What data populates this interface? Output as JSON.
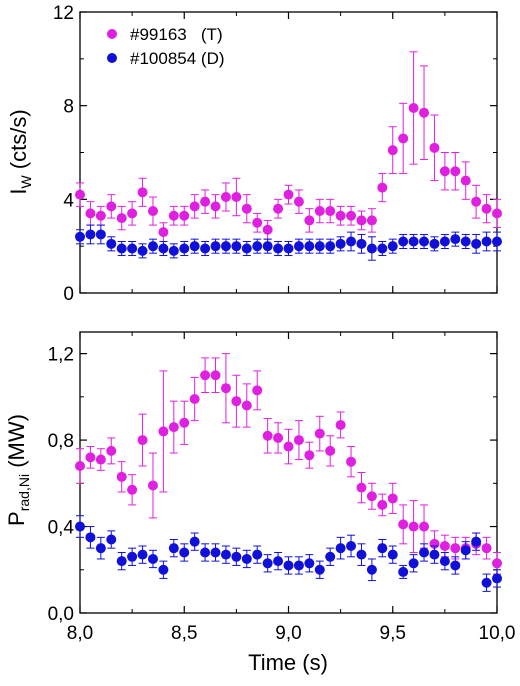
{
  "chart_data": [
    {
      "type": "scatter",
      "ylabel_main": "I",
      "ylabel_sub": "W",
      "ylabel_unit": " (cts/s)",
      "ylim": [
        0,
        12
      ],
      "yticks": [
        0,
        4,
        8,
        12
      ],
      "ytick_labels": [
        "0",
        "4",
        "8",
        "12"
      ],
      "xlim": [
        8.0,
        10.0
      ],
      "legend": [
        {
          "label": "#99163   (T)",
          "color": "#e020e0"
        },
        {
          "label": "#100854 (D)",
          "color": "#1010d8"
        }
      ],
      "series": [
        {
          "name": "#99163   (T)",
          "color": "#e020e0",
          "x": [
            8.0,
            8.05,
            8.1,
            8.15,
            8.2,
            8.25,
            8.3,
            8.35,
            8.4,
            8.45,
            8.5,
            8.55,
            8.6,
            8.65,
            8.7,
            8.75,
            8.8,
            8.85,
            8.9,
            8.95,
            9.0,
            9.05,
            9.1,
            9.15,
            9.2,
            9.25,
            9.3,
            9.35,
            9.4,
            9.45,
            9.5,
            9.55,
            9.6,
            9.65,
            9.7,
            9.75,
            9.8,
            9.85,
            9.9,
            9.95,
            10.0
          ],
          "y": [
            4.2,
            3.4,
            3.3,
            3.7,
            3.2,
            3.4,
            4.3,
            3.5,
            2.6,
            3.3,
            3.3,
            3.7,
            3.9,
            3.7,
            4.1,
            4.1,
            3.6,
            3.0,
            2.7,
            3.6,
            4.2,
            3.9,
            3.1,
            3.5,
            3.5,
            3.3,
            3.3,
            3.1,
            3.1,
            4.5,
            6.1,
            6.6,
            7.9,
            7.7,
            6.2,
            5.2,
            5.2,
            4.8,
            3.9,
            3.6,
            3.4
          ],
          "err": [
            0.5,
            0.5,
            0.4,
            0.5,
            0.5,
            0.5,
            0.6,
            0.6,
            0.4,
            0.4,
            0.4,
            0.5,
            0.5,
            0.5,
            0.6,
            0.8,
            0.6,
            0.4,
            0.4,
            0.4,
            0.4,
            0.5,
            0.5,
            0.5,
            0.5,
            0.4,
            0.4,
            0.4,
            0.5,
            0.6,
            1.0,
            1.5,
            2.4,
            2.0,
            1.4,
            0.8,
            0.8,
            0.8,
            0.7,
            0.6,
            0.6
          ]
        },
        {
          "name": "#100854 (D)",
          "color": "#1010d8",
          "x": [
            8.0,
            8.05,
            8.1,
            8.15,
            8.2,
            8.25,
            8.3,
            8.35,
            8.4,
            8.45,
            8.5,
            8.55,
            8.6,
            8.65,
            8.7,
            8.75,
            8.8,
            8.85,
            8.9,
            8.95,
            9.0,
            9.05,
            9.1,
            9.15,
            9.2,
            9.25,
            9.3,
            9.35,
            9.4,
            9.45,
            9.5,
            9.55,
            9.6,
            9.65,
            9.7,
            9.75,
            9.8,
            9.85,
            9.9,
            9.95,
            10.0
          ],
          "y": [
            2.4,
            2.5,
            2.5,
            2.1,
            1.9,
            1.9,
            1.8,
            2.0,
            1.9,
            1.8,
            1.9,
            2.0,
            1.9,
            2.0,
            2.0,
            2.0,
            1.9,
            2.0,
            2.0,
            1.9,
            1.9,
            2.0,
            2.0,
            2.0,
            2.0,
            2.1,
            2.2,
            2.1,
            1.9,
            1.9,
            2.0,
            2.2,
            2.2,
            2.2,
            2.1,
            2.2,
            2.3,
            2.2,
            2.1,
            2.2,
            2.2
          ],
          "err": [
            0.3,
            0.4,
            0.4,
            0.3,
            0.3,
            0.3,
            0.3,
            0.3,
            0.3,
            0.3,
            0.3,
            0.3,
            0.3,
            0.3,
            0.3,
            0.3,
            0.3,
            0.3,
            0.3,
            0.3,
            0.3,
            0.3,
            0.3,
            0.3,
            0.3,
            0.3,
            0.4,
            0.4,
            0.5,
            0.3,
            0.3,
            0.3,
            0.3,
            0.3,
            0.3,
            0.3,
            0.3,
            0.3,
            0.4,
            0.4,
            0.4
          ]
        }
      ]
    },
    {
      "type": "scatter",
      "xlabel": "Time (s)",
      "ylabel_main": "P",
      "ylabel_sub": "rad,Ni",
      "ylabel_unit": " (MW)",
      "ylim": [
        0,
        1.3
      ],
      "yticks": [
        0,
        0.4,
        0.8,
        1.2
      ],
      "ytick_labels": [
        "0,0",
        "0,4",
        "0,8",
        "1,2"
      ],
      "xlim": [
        8.0,
        10.0
      ],
      "xticks": [
        8.0,
        8.5,
        9.0,
        9.5,
        10.0
      ],
      "xtick_labels": [
        "8,0",
        "8,5",
        "9,0",
        "9,5",
        "10,0"
      ],
      "series": [
        {
          "name": "#99163   (T)",
          "color": "#e020e0",
          "x": [
            8.0,
            8.05,
            8.1,
            8.15,
            8.2,
            8.25,
            8.3,
            8.35,
            8.4,
            8.45,
            8.5,
            8.55,
            8.6,
            8.65,
            8.7,
            8.75,
            8.8,
            8.85,
            8.9,
            8.95,
            9.0,
            9.05,
            9.1,
            9.15,
            9.2,
            9.25,
            9.3,
            9.35,
            9.4,
            9.45,
            9.5,
            9.55,
            9.6,
            9.65,
            9.7,
            9.75,
            9.8,
            9.85,
            9.9,
            9.95,
            10.0
          ],
          "y": [
            0.68,
            0.72,
            0.71,
            0.75,
            0.63,
            0.57,
            0.8,
            0.59,
            0.84,
            0.86,
            0.88,
            0.99,
            1.1,
            1.1,
            1.04,
            0.98,
            0.96,
            1.03,
            0.82,
            0.81,
            0.77,
            0.8,
            0.73,
            0.83,
            0.75,
            0.87,
            0.7,
            0.58,
            0.54,
            0.5,
            0.53,
            0.41,
            0.4,
            0.4,
            0.32,
            0.31,
            0.3,
            0.3,
            0.32,
            0.3,
            0.23
          ],
          "err": [
            0.08,
            0.05,
            0.05,
            0.06,
            0.07,
            0.07,
            0.12,
            0.15,
            0.28,
            0.12,
            0.1,
            0.1,
            0.08,
            0.08,
            0.16,
            0.12,
            0.1,
            0.09,
            0.08,
            0.07,
            0.08,
            0.09,
            0.06,
            0.08,
            0.07,
            0.06,
            0.07,
            0.07,
            0.06,
            0.05,
            0.07,
            0.09,
            0.12,
            0.1,
            0.06,
            0.05,
            0.05,
            0.05,
            0.05,
            0.05,
            0.05
          ]
        },
        {
          "name": "#100854 (D)",
          "color": "#1010d8",
          "x": [
            8.0,
            8.05,
            8.1,
            8.15,
            8.2,
            8.25,
            8.3,
            8.35,
            8.4,
            8.45,
            8.5,
            8.55,
            8.6,
            8.65,
            8.7,
            8.75,
            8.8,
            8.85,
            8.9,
            8.95,
            9.0,
            9.05,
            9.1,
            9.15,
            9.2,
            9.25,
            9.3,
            9.35,
            9.4,
            9.45,
            9.5,
            9.55,
            9.6,
            9.65,
            9.7,
            9.75,
            9.8,
            9.85,
            9.9,
            9.95,
            10.0
          ],
          "y": [
            0.4,
            0.35,
            0.3,
            0.34,
            0.24,
            0.26,
            0.27,
            0.25,
            0.2,
            0.3,
            0.28,
            0.33,
            0.28,
            0.28,
            0.27,
            0.26,
            0.25,
            0.27,
            0.23,
            0.24,
            0.22,
            0.22,
            0.23,
            0.2,
            0.26,
            0.3,
            0.31,
            0.27,
            0.2,
            0.3,
            0.27,
            0.19,
            0.23,
            0.28,
            0.27,
            0.24,
            0.22,
            0.29,
            0.33,
            0.14,
            0.16
          ],
          "err": [
            0.05,
            0.05,
            0.05,
            0.04,
            0.04,
            0.04,
            0.04,
            0.04,
            0.04,
            0.04,
            0.04,
            0.04,
            0.04,
            0.04,
            0.04,
            0.04,
            0.04,
            0.04,
            0.04,
            0.04,
            0.04,
            0.04,
            0.04,
            0.04,
            0.04,
            0.05,
            0.05,
            0.05,
            0.05,
            0.04,
            0.04,
            0.03,
            0.04,
            0.04,
            0.04,
            0.04,
            0.04,
            0.04,
            0.04,
            0.04,
            0.04
          ]
        }
      ]
    }
  ]
}
